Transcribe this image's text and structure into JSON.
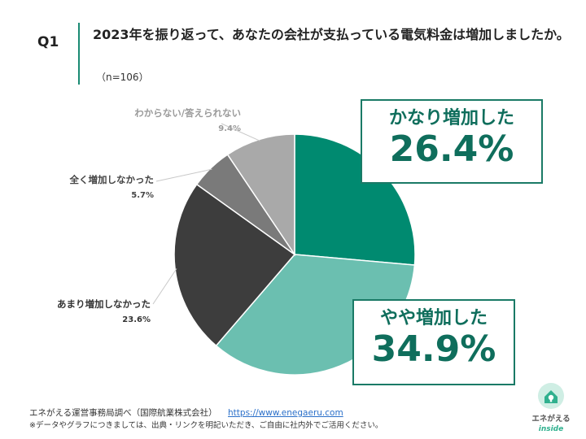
{
  "header": {
    "q_number": "Q1",
    "question": "2023年を振り返って、あなたの会社が支払っている電気料金は増加しましたか。",
    "sample": "（n=106）"
  },
  "colors": {
    "accent": "#1a8a73",
    "callout_text": "#0f6e5c",
    "callout_border": "#1a7a66"
  },
  "chart_data": {
    "type": "pie",
    "start": "12 o'clock, clockwise",
    "slices": [
      {
        "label": "かなり増加した",
        "value": 26.4,
        "display": "26.4%",
        "color": "#008a70"
      },
      {
        "label": "やや増加した",
        "value": 34.9,
        "display": "34.9%",
        "color": "#6bbfb0"
      },
      {
        "label": "あまり増加しなかった",
        "value": 23.6,
        "display": "23.6%",
        "color": "#3d3d3d"
      },
      {
        "label": "全く増加しなかった",
        "value": 5.7,
        "display": "5.7%",
        "color": "#7a7a7a"
      },
      {
        "label": "わからない/答えられない",
        "value": 9.4,
        "display": "9.4%",
        "color": "#a9a9a9"
      }
    ]
  },
  "footer": {
    "source": "エネがえる運営事務局調べ（国際航業株式会社）",
    "url": "https://www.enegaeru.com",
    "note": "※データやグラフにつきましては、出典・リンクを明記いただき、ご自由に社内外でご活用ください。"
  },
  "logo": {
    "name": "エネがえる",
    "sub": "inside",
    "icon": "house-bulb-icon"
  }
}
